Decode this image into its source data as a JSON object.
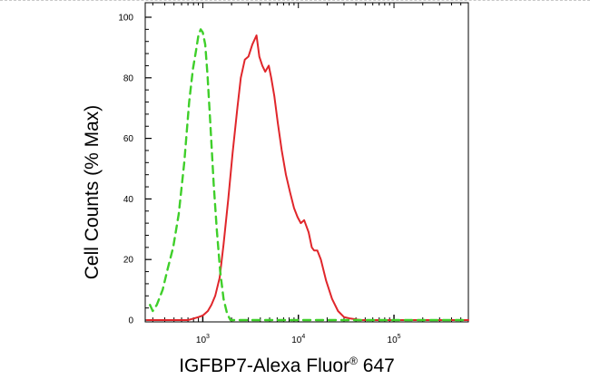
{
  "chart_data": {
    "type": "line",
    "title": "",
    "xlabel": "IGFBP7-Alexa Fluor",
    "xlabel_mark": "®",
    "xlabel_suffix": " 647",
    "ylabel": "Cell Counts (% Max)",
    "x_scale": "log",
    "xlim": [
      250,
      600000
    ],
    "ylim": [
      0,
      100
    ],
    "y_ticks": [
      0,
      20,
      40,
      60,
      80,
      100
    ],
    "x_ticks": [
      {
        "value": 1000,
        "base": "10",
        "exp": "3"
      },
      {
        "value": 10000,
        "base": "10",
        "exp": "4"
      },
      {
        "value": 100000,
        "base": "10",
        "exp": "5"
      }
    ],
    "grid": false,
    "legend": "none",
    "series": [
      {
        "color": "#e0262b",
        "style": "solid",
        "x": [
          260,
          700,
          800,
          900,
          1000,
          1130,
          1230,
          1350,
          1500,
          1650,
          1850,
          2050,
          2300,
          2500,
          2750,
          3000,
          3300,
          3650,
          3900,
          4200,
          4500,
          4900,
          5200,
          5600,
          6100,
          6700,
          7400,
          8200,
          9000,
          9800,
          10600,
          11500,
          12800,
          13800,
          14600,
          15800,
          17200,
          19500,
          22500,
          26000,
          30000,
          35000,
          45000,
          60000,
          100000,
          200000,
          400000,
          600000
        ],
        "y": [
          0,
          0,
          0.5,
          1,
          1.5,
          3,
          5,
          8,
          14,
          25,
          40,
          55,
          70,
          80,
          86,
          87,
          91,
          94,
          87,
          84,
          82,
          84,
          80,
          74,
          65,
          56,
          48,
          42,
          37,
          34,
          32,
          33,
          29,
          24,
          23,
          23,
          20,
          13,
          7,
          3,
          1,
          0.5,
          0,
          0,
          0,
          0,
          0,
          0
        ]
      },
      {
        "color": "#3fcf2a",
        "style": "dashed",
        "x": [
          280,
          300,
          330,
          380,
          430,
          490,
          560,
          640,
          720,
          790,
          850,
          900,
          950,
          1000,
          1060,
          1120,
          1200,
          1300,
          1400,
          1520,
          1650,
          1800,
          1950,
          2150,
          2400,
          2800,
          3500,
          5000,
          8000,
          20000,
          100000,
          600000
        ],
        "y": [
          5,
          3,
          5,
          10,
          17,
          24,
          35,
          52,
          72,
          83,
          89,
          94,
          96,
          95,
          91,
          81,
          65,
          45,
          30,
          16,
          7,
          2,
          0,
          0,
          0,
          0,
          0,
          0,
          0,
          0,
          0,
          0
        ]
      }
    ]
  }
}
